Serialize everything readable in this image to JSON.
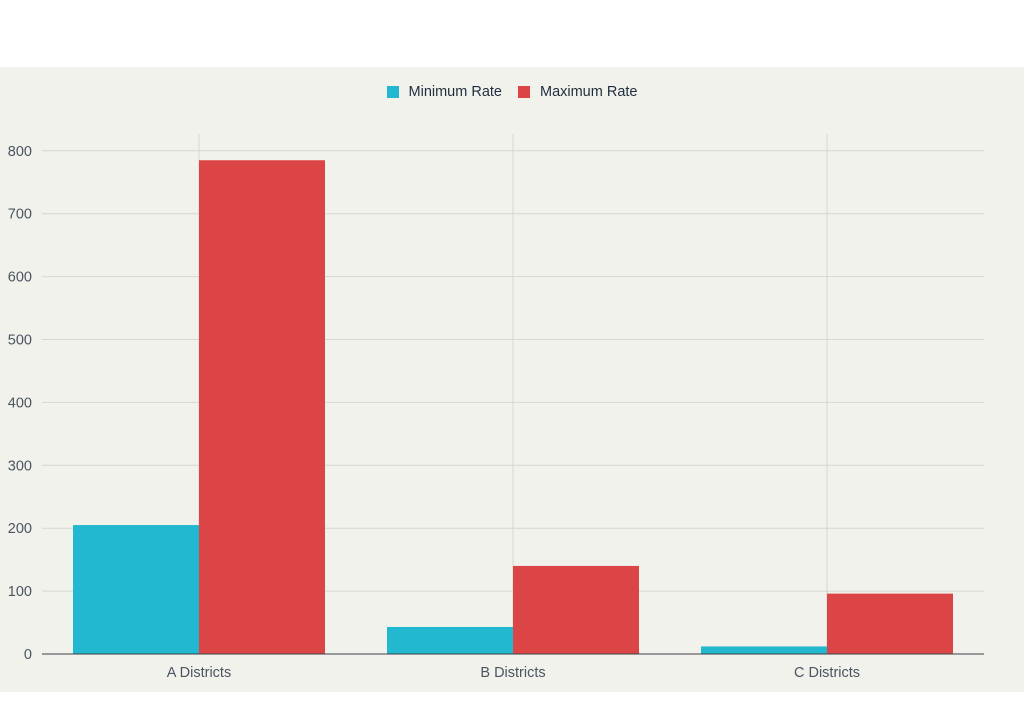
{
  "chart_data": {
    "type": "bar",
    "title": "",
    "xlabel": "",
    "ylabel": "",
    "categories": [
      "A Districts",
      "B Districts",
      "C Districts"
    ],
    "series": [
      {
        "name": "Minimum Rate",
        "color": "#22b8cf",
        "values": [
          205,
          43,
          12
        ]
      },
      {
        "name": "Maximum Rate",
        "color": "#db4545",
        "values": [
          785,
          140,
          96
        ]
      }
    ],
    "ylim": [
      0,
      828
    ],
    "yticks": [
      0,
      100,
      200,
      300,
      400,
      500,
      600,
      700,
      800
    ],
    "grid": true,
    "legend_position": "top-center"
  }
}
